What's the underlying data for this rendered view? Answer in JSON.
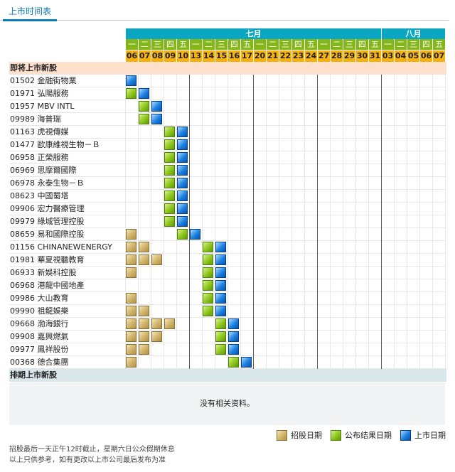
{
  "tab": {
    "label": "上市时间表"
  },
  "months": [
    {
      "label": "七月",
      "days": [
        "06",
        "07",
        "08",
        "09",
        "10",
        "13",
        "14",
        "15",
        "16",
        "17",
        "20",
        "21",
        "22",
        "23",
        "24",
        "27",
        "28",
        "29",
        "30",
        "31"
      ],
      "weekdays": [
        "一",
        "二",
        "三",
        "四",
        "五",
        "一",
        "二",
        "三",
        "四",
        "五",
        "一",
        "二",
        "三",
        "四",
        "五",
        "一",
        "二",
        "三",
        "四",
        "五"
      ]
    },
    {
      "label": "八月",
      "days": [
        "03",
        "04",
        "05",
        "06",
        "07"
      ],
      "weekdays": [
        "一",
        "二",
        "三",
        "四",
        "五"
      ]
    }
  ],
  "section_upcoming": "即将上市新股",
  "section_scheduled": "排期上市新股",
  "stocks": [
    {
      "code": "01502",
      "name": "金融街物業",
      "sub": [],
      "res": [],
      "lst": [
        0
      ]
    },
    {
      "code": "01971",
      "name": "弘陽服務",
      "sub": [],
      "res": [
        0
      ],
      "lst": [
        1
      ]
    },
    {
      "code": "01957",
      "name": "MBV INTL",
      "sub": [],
      "res": [
        1
      ],
      "lst": [
        2
      ]
    },
    {
      "code": "09989",
      "name": "海普瑞",
      "sub": [],
      "res": [
        1
      ],
      "lst": [
        2
      ]
    },
    {
      "code": "01163",
      "name": "虎視傳媒",
      "sub": [],
      "res": [
        3
      ],
      "lst": [
        4
      ]
    },
    {
      "code": "01477",
      "name": "歐康維視生物－Ｂ",
      "sub": [],
      "res": [
        3
      ],
      "lst": [
        4
      ]
    },
    {
      "code": "06958",
      "name": "正榮服務",
      "sub": [],
      "res": [
        3
      ],
      "lst": [
        4
      ]
    },
    {
      "code": "06969",
      "name": "思摩爾國際",
      "sub": [],
      "res": [
        3
      ],
      "lst": [
        4
      ]
    },
    {
      "code": "06978",
      "name": "永泰生物－Ｂ",
      "sub": [],
      "res": [
        3
      ],
      "lst": [
        4
      ]
    },
    {
      "code": "08623",
      "name": "中國蜀塔",
      "sub": [],
      "res": [
        3
      ],
      "lst": [
        4
      ]
    },
    {
      "code": "09906",
      "name": "宏力醫療管理",
      "sub": [],
      "res": [
        3
      ],
      "lst": [
        4
      ]
    },
    {
      "code": "09979",
      "name": "綠城管理控股",
      "sub": [],
      "res": [
        3
      ],
      "lst": [
        4
      ]
    },
    {
      "code": "08659",
      "name": "易和國際控股",
      "sub": [
        0
      ],
      "res": [
        4
      ],
      "lst": [
        5
      ]
    },
    {
      "code": "01156",
      "name": "CHINANEWENERGY",
      "sub": [
        0,
        1
      ],
      "res": [
        6
      ],
      "lst": [
        7
      ]
    },
    {
      "code": "01981",
      "name": "華夏視聽教育",
      "sub": [
        0,
        1,
        2
      ],
      "res": [
        6
      ],
      "lst": [
        7
      ]
    },
    {
      "code": "06933",
      "name": "新娛科控股",
      "sub": [
        0
      ],
      "res": [
        6
      ],
      "lst": [
        7
      ]
    },
    {
      "code": "06968",
      "name": "港龍中國地產",
      "sub": [],
      "res": [
        6
      ],
      "lst": [
        7
      ]
    },
    {
      "code": "09986",
      "name": "大山教育",
      "sub": [
        0
      ],
      "res": [
        6
      ],
      "lst": [
        7
      ]
    },
    {
      "code": "09990",
      "name": "祖龍娛樂",
      "sub": [
        0,
        1
      ],
      "res": [
        6
      ],
      "lst": [
        7
      ]
    },
    {
      "code": "09668",
      "name": "渤海銀行",
      "sub": [
        0,
        1,
        2,
        3
      ],
      "res": [
        7
      ],
      "lst": [
        8
      ]
    },
    {
      "code": "09908",
      "name": "嘉興燃氣",
      "sub": [
        0,
        1,
        2
      ],
      "res": [
        7
      ],
      "lst": [
        8
      ]
    },
    {
      "code": "09977",
      "name": "鳳祥股份",
      "sub": [
        0,
        1
      ],
      "res": [
        7
      ],
      "lst": [
        8
      ]
    },
    {
      "code": "00368",
      "name": "德合集團",
      "sub": [
        0
      ],
      "res": [
        8
      ],
      "lst": [
        9
      ]
    }
  ],
  "no_data": "没有相关资料。",
  "legend": [
    {
      "key": "sub",
      "label": "招股日期"
    },
    {
      "key": "res",
      "label": "公布结果日期"
    },
    {
      "key": "lst",
      "label": "上市日期"
    }
  ],
  "notes": [
    "招股最后一天正午12时截止，星期六日公众假期休息",
    "以上只供参考，如有更改以上市公司最后发布为准"
  ],
  "colors": {
    "month": "#0aa6c2",
    "weekday": "#84b61a",
    "day": "#f6b10c",
    "section": "#ffe0cc",
    "scheduled": "#d9e6ea"
  }
}
